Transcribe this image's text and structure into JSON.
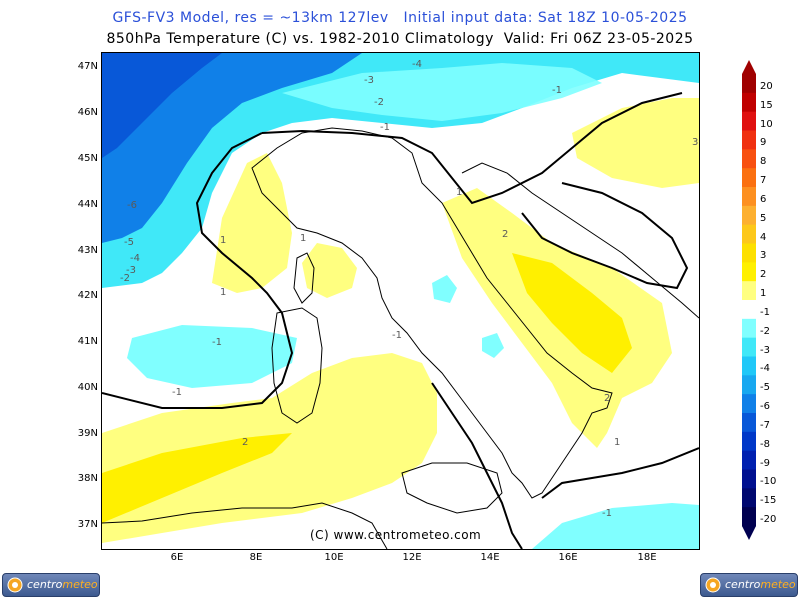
{
  "header": {
    "line1": "GFS-FV3 Model, res = ~13km 127lev   Initial input data: Sat 18Z 10-05-2025",
    "line2": "850hPa Temperature (C) vs. 1982-2010 Climatology  Valid: Fri 06Z 23-05-2025"
  },
  "map": {
    "lat_labels": [
      "47N",
      "46N",
      "45N",
      "44N",
      "43N",
      "42N",
      "41N",
      "40N",
      "39N",
      "38N",
      "37N"
    ],
    "lon_labels": [
      "6E",
      "8E",
      "10E",
      "12E",
      "14E",
      "16E",
      "18E"
    ],
    "credit": "(C) www.centrometeo.com",
    "contour_labels": [
      {
        "text": "-4",
        "color": "#5a5a5a"
      },
      {
        "text": "-3",
        "color": "#5a5a5a"
      },
      {
        "text": "-2",
        "color": "#5a5a5a"
      },
      {
        "text": "-1",
        "color": "#5a5a5a"
      },
      {
        "text": "-6",
        "color": "#5a5a5a"
      },
      {
        "text": "-5",
        "color": "#5a5a5a"
      },
      {
        "text": "-4",
        "color": "#5a5a5a"
      },
      {
        "text": "-3",
        "color": "#5a5a5a"
      },
      {
        "text": "-2",
        "color": "#5a5a5a"
      },
      {
        "text": "-1",
        "color": "#5a5a5a"
      },
      {
        "text": "-1",
        "color": "#5a5a5a"
      },
      {
        "text": "1",
        "color": "#5a5a5a"
      },
      {
        "text": "1",
        "color": "#5a5a5a"
      },
      {
        "text": "1",
        "color": "#5a5a5a"
      },
      {
        "text": "2",
        "color": "#5a5a5a"
      },
      {
        "text": "2",
        "color": "#5a5a5a"
      },
      {
        "text": "2",
        "color": "#5a5a5a"
      },
      {
        "text": "1",
        "color": "#5a5a5a"
      },
      {
        "text": "-1",
        "color": "#5a5a5a"
      },
      {
        "text": "-1",
        "color": "#5a5a5a"
      },
      {
        "text": "3",
        "color": "#5a5a5a"
      },
      {
        "text": "1",
        "color": "#5a5a5a"
      },
      {
        "text": "-1",
        "color": "#5a5a5a"
      }
    ]
  },
  "colorbar": {
    "labels": [
      "20",
      "15",
      "10",
      "9",
      "8",
      "7",
      "6",
      "5",
      "4",
      "3",
      "2",
      "1",
      "-1",
      "-2",
      "-3",
      "-4",
      "-5",
      "-6",
      "-7",
      "-8",
      "-9",
      "-10",
      "-15",
      "-20"
    ],
    "colors": [
      "#a00000",
      "#c00000",
      "#e01010",
      "#f03010",
      "#f85010",
      "#fb7010",
      "#fd9020",
      "#fdb030",
      "#fdc81a",
      "#fde000",
      "#fff000",
      "#ffff80",
      "#ffffff",
      "#80ffff",
      "#40e8f8",
      "#20c8f8",
      "#18a8f0",
      "#1080e8",
      "#0858d8",
      "#0038c8",
      "#0020b0",
      "#001090",
      "#000870",
      "#000050"
    ]
  },
  "logos": {
    "left": {
      "word1": "centro",
      "word2": "meteo"
    },
    "right": {
      "word1": "centro",
      "word2": "meteo"
    }
  }
}
